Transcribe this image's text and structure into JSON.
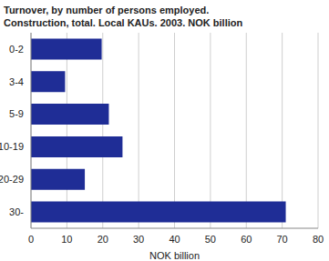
{
  "chart_data": {
    "type": "bar",
    "title": "Turnover, by number of persons employed.",
    "subtitle": "Construction, total. Local KAUs. 2003. NOK billion",
    "categories": [
      "0-2",
      "3-4",
      "5-9",
      "10-19",
      "20-29",
      "30-"
    ],
    "values": [
      19.7,
      9.5,
      21.7,
      25.5,
      15,
      71
    ],
    "color": "#1f2d96",
    "orientation": "horizontal",
    "xlabel": "NOK billion",
    "xlim": [
      0,
      80
    ],
    "xticks": [
      0,
      10,
      20,
      30,
      40,
      50,
      60,
      70,
      80
    ],
    "grid": true
  }
}
